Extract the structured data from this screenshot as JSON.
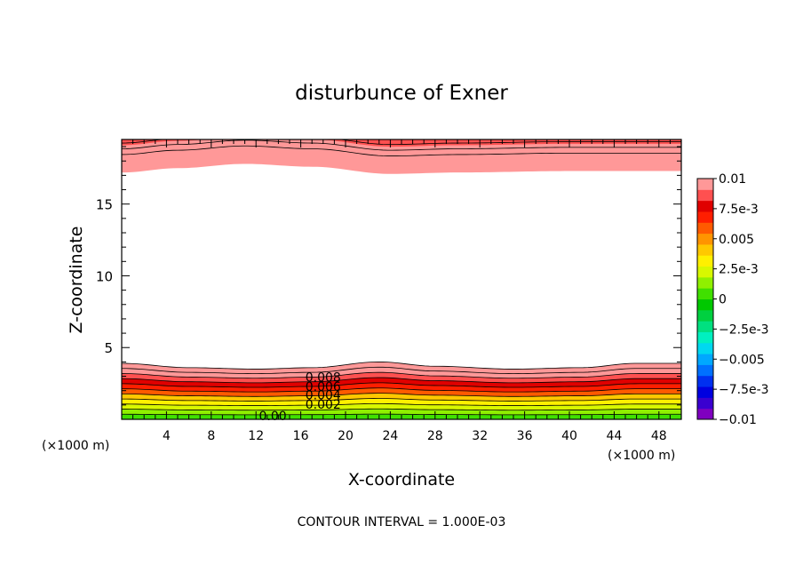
{
  "chart_data": {
    "type": "contour",
    "title": "disturbunce of Exner",
    "xlabel": "X-coordinate",
    "ylabel": "Z-coordinate",
    "x_unit": "(×1000 m)",
    "x_unit_right": "(×1000 m)",
    "footer": "CONTOUR INTERVAL = 1.000E-03",
    "xlim": [
      0,
      50
    ],
    "ylim": [
      0,
      19.5
    ],
    "x_ticks": [
      4,
      8,
      12,
      16,
      20,
      24,
      28,
      32,
      36,
      40,
      44,
      48
    ],
    "y_ticks": [
      5,
      10,
      15
    ],
    "contour_interval": 0.001,
    "contour_labels": [
      {
        "text": "0.008",
        "x": 18,
        "z": 2.95
      },
      {
        "text": "0.006",
        "x": 18,
        "z": 2.3
      },
      {
        "text": "0.004",
        "x": 18,
        "z": 1.7
      },
      {
        "text": "0.002",
        "x": 18,
        "z": 1.05
      },
      {
        "text": "0.00",
        "x": 13.5,
        "z": 0.25
      }
    ],
    "lower_layer": {
      "top_z": [
        {
          "x": 0,
          "z": 3.9
        },
        {
          "x": 6,
          "z": 3.6
        },
        {
          "x": 12,
          "z": 3.5
        },
        {
          "x": 17,
          "z": 3.6
        },
        {
          "x": 23,
          "z": 4.0
        },
        {
          "x": 28,
          "z": 3.7
        },
        {
          "x": 35,
          "z": 3.5
        },
        {
          "x": 41,
          "z": 3.6
        },
        {
          "x": 46,
          "z": 3.9
        },
        {
          "x": 50,
          "z": 3.9
        }
      ],
      "bottom_value": 0.0,
      "top_value": 0.0105
    },
    "upper_layer": {
      "bottom_z": [
        {
          "x": 0,
          "z": 17.2
        },
        {
          "x": 5,
          "z": 17.5
        },
        {
          "x": 11,
          "z": 17.8
        },
        {
          "x": 17,
          "z": 17.6
        },
        {
          "x": 24,
          "z": 17.1
        },
        {
          "x": 30,
          "z": 17.2
        },
        {
          "x": 40,
          "z": 17.3
        },
        {
          "x": 50,
          "z": 17.3
        }
      ],
      "bands": [
        {
          "offset_z": 0.0,
          "value": 0.01
        },
        {
          "offset_z": 0.9,
          "value": 0.0095
        },
        {
          "offset_z": 1.9,
          "value": 0.009
        }
      ]
    },
    "colorbar": {
      "min": -0.01,
      "max": 0.01,
      "labels": [
        {
          "value": 0.01,
          "text": "0.01"
        },
        {
          "value": 0.0075,
          "text": "7.5e-3"
        },
        {
          "value": 0.005,
          "text": "0.005"
        },
        {
          "value": 0.0025,
          "text": "2.5e-3"
        },
        {
          "value": 0,
          "text": "0"
        },
        {
          "value": -0.0025,
          "text": "−2.5e-3"
        },
        {
          "value": -0.005,
          "text": "−0.005"
        },
        {
          "value": -0.0075,
          "text": "−7.5e-3"
        },
        {
          "value": -0.01,
          "text": "−0.01"
        }
      ],
      "colors": [
        "#7f00c0",
        "#3a00d0",
        "#0000e0",
        "#0030f0",
        "#0070ff",
        "#00a8ff",
        "#00d8f0",
        "#00f0c0",
        "#00e080",
        "#00d040",
        "#00c800",
        "#40e000",
        "#90f000",
        "#d8f800",
        "#fff000",
        "#ffc800",
        "#ff9400",
        "#ff5a00",
        "#ff1e00",
        "#e00000",
        "#ff5050",
        "#ff9898"
      ]
    }
  }
}
